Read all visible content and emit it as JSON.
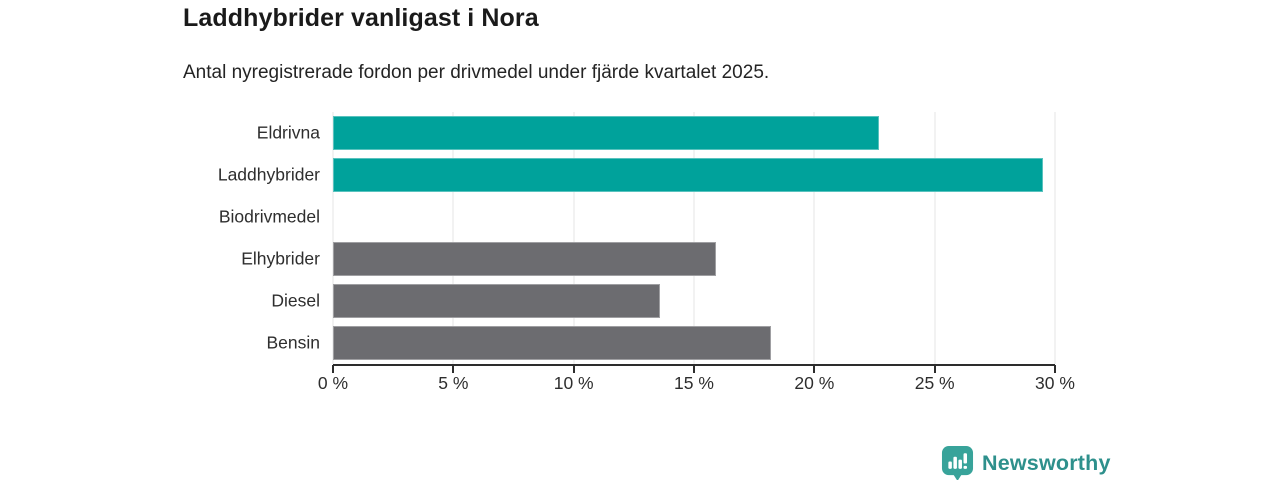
{
  "chart_data": {
    "type": "bar",
    "orientation": "horizontal",
    "title": "Laddhybrider vanligast i Nora",
    "subtitle": "Antal nyregistrerade fordon per drivmedel under fjärde kvartalet 2025.",
    "categories": [
      "Eldrivna",
      "Laddhybrider",
      "Biodrivmedel",
      "Elhybrider",
      "Diesel",
      "Bensin"
    ],
    "values": [
      22.7,
      29.5,
      0,
      15.9,
      13.6,
      18.2
    ],
    "unit": "%",
    "bar_colors": [
      "#00A29B",
      "#00A29B",
      "#6C6C70",
      "#6C6C70",
      "#6C6C70",
      "#6C6C70"
    ],
    "highlight_color": "#00A29B",
    "default_color": "#6C6C70",
    "xlim": [
      0,
      30
    ],
    "x_ticks": [
      0,
      5,
      10,
      15,
      20,
      25,
      30
    ],
    "x_tick_labels": [
      "0 %",
      "5 %",
      "10 %",
      "15 %",
      "20 %",
      "25 %",
      "30 %"
    ],
    "grid": "vertical-on",
    "legend": "none"
  },
  "footer": {
    "brand": "Newsworthy"
  },
  "colors": {
    "title": "#1a1a1a",
    "text": "#2e2e2e",
    "axis": "#2d2d2d",
    "grid": "#e4e4e4",
    "brand_icon": "#38A39A",
    "brand_text": "#2E908C",
    "background": "#ffffff"
  }
}
